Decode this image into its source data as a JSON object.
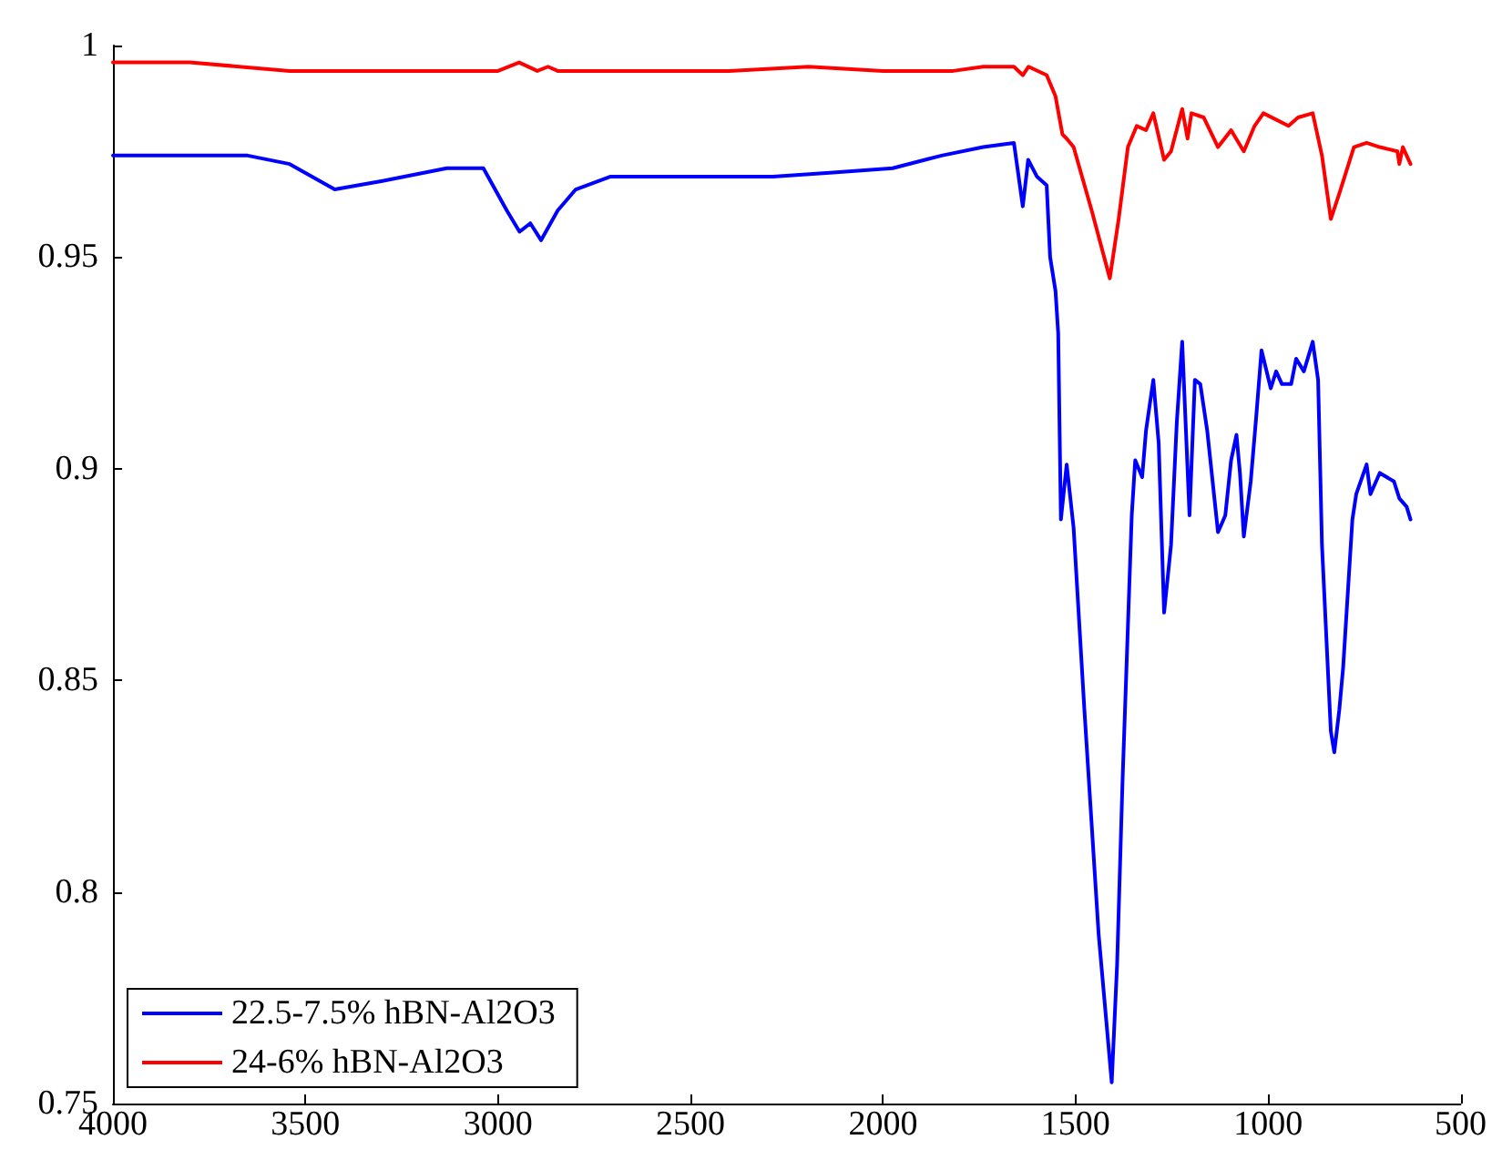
{
  "chart_data": {
    "type": "line",
    "xlim": [
      4000,
      500
    ],
    "xticks": [
      4000,
      3500,
      3000,
      2500,
      2000,
      1500,
      1000,
      500
    ],
    "ylim": [
      0.75,
      1
    ],
    "yticks": [
      0.75,
      0.8,
      0.85,
      0.9,
      0.95,
      1
    ],
    "grid": false,
    "legend": "bottom left",
    "marker": "none",
    "line_style": "solid",
    "series": [
      {
        "name": "22.5-7.5% hBN-Al2O3",
        "color": "#0000ff",
        "x": [
          4000,
          3800,
          3650,
          3541,
          3424,
          3300,
          3133,
          3038,
          2977,
          2944,
          2916,
          2888,
          2845,
          2798,
          2709,
          2521,
          2366,
          2286,
          2130,
          1975,
          1848,
          1740,
          1660,
          1637,
          1623,
          1600,
          1575,
          1566,
          1552,
          1545,
          1538,
          1523,
          1505,
          1477,
          1440,
          1406,
          1392,
          1378,
          1354,
          1345,
          1327,
          1317,
          1298,
          1284,
          1270,
          1252,
          1237,
          1223,
          1204,
          1190,
          1176,
          1158,
          1130,
          1111,
          1096,
          1082,
          1073,
          1063,
          1045,
          1031,
          1017,
          993,
          979,
          964,
          940,
          927,
          907,
          884,
          870,
          860,
          837,
          828,
          815,
          805,
          781,
          771,
          744,
          734,
          710,
          673,
          659,
          640,
          630
        ],
        "values": [
          0.974,
          0.974,
          0.974,
          0.972,
          0.966,
          0.968,
          0.971,
          0.971,
          0.961,
          0.956,
          0.958,
          0.954,
          0.961,
          0.966,
          0.969,
          0.969,
          0.969,
          0.969,
          0.97,
          0.971,
          0.974,
          0.976,
          0.977,
          0.962,
          0.973,
          0.969,
          0.967,
          0.95,
          0.942,
          0.932,
          0.888,
          0.901,
          0.886,
          0.843,
          0.79,
          0.755,
          0.783,
          0.826,
          0.889,
          0.902,
          0.898,
          0.909,
          0.921,
          0.906,
          0.866,
          0.882,
          0.911,
          0.93,
          0.889,
          0.921,
          0.92,
          0.909,
          0.885,
          0.889,
          0.902,
          0.908,
          0.899,
          0.884,
          0.897,
          0.912,
          0.928,
          0.919,
          0.923,
          0.92,
          0.92,
          0.926,
          0.923,
          0.93,
          0.921,
          0.882,
          0.838,
          0.833,
          0.843,
          0.853,
          0.888,
          0.894,
          0.901,
          0.894,
          0.899,
          0.897,
          0.893,
          0.891,
          0.888
        ]
      },
      {
        "name": "24-6% hBN-Al2O3",
        "color": "#ff0000",
        "x": [
          4000,
          3800,
          3541,
          3300,
          3000,
          2945,
          2898,
          2870,
          2845,
          2600,
          2400,
          2193,
          2000,
          1818,
          1740,
          1660,
          1637,
          1622,
          1575,
          1552,
          1534,
          1523,
          1505,
          1458,
          1411,
          1388,
          1364,
          1341,
          1317,
          1298,
          1270,
          1252,
          1223,
          1209,
          1199,
          1167,
          1130,
          1096,
          1063,
          1035,
          1012,
          947,
          922,
          884,
          860,
          837,
          815,
          777,
          744,
          710,
          664,
          659,
          650,
          630
        ],
        "values": [
          0.996,
          0.996,
          0.994,
          0.994,
          0.994,
          0.996,
          0.994,
          0.995,
          0.994,
          0.994,
          0.994,
          0.995,
          0.994,
          0.994,
          0.995,
          0.995,
          0.993,
          0.995,
          0.993,
          0.988,
          0.979,
          0.978,
          0.976,
          0.961,
          0.945,
          0.959,
          0.976,
          0.981,
          0.98,
          0.984,
          0.973,
          0.975,
          0.985,
          0.978,
          0.984,
          0.983,
          0.976,
          0.98,
          0.975,
          0.981,
          0.984,
          0.981,
          0.983,
          0.984,
          0.974,
          0.959,
          0.965,
          0.976,
          0.977,
          0.976,
          0.975,
          0.972,
          0.976,
          0.972
        ]
      }
    ]
  }
}
